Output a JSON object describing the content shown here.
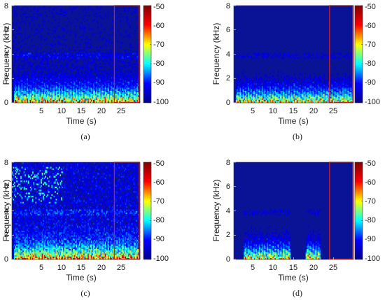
{
  "colors": {
    "background": "#0a1296",
    "highlight_box": "#cc2222",
    "colormap": [
      "#00008f",
      "#0000ff",
      "#00ffff",
      "#ffff00",
      "#ff0000",
      "#800000"
    ]
  },
  "chart_data": [
    {
      "type": "heatmap",
      "panel_label": "(a)",
      "xlabel": "Time (s)",
      "ylabel": "Frequency (kHz)",
      "xticks": [
        "5",
        "10",
        "15",
        "20",
        "25"
      ],
      "yticks": [
        "0",
        "2",
        "4",
        "6",
        "8"
      ],
      "colorbar_ticks": [
        "-50",
        "-60",
        "-70",
        "-80",
        "-90",
        "-100"
      ],
      "xlim": [
        0,
        30
      ],
      "ylim": [
        0,
        8
      ],
      "clim": [
        -100,
        -50
      ],
      "highlight_box": {
        "x": [
          24,
          30
        ],
        "y": [
          0,
          8
        ]
      },
      "speech_segments": [
        [
          0.3,
          29.7
        ]
      ],
      "noise_level": "low"
    },
    {
      "type": "heatmap",
      "panel_label": "(b)",
      "xlabel": "Time (s)",
      "ylabel": "Frequency (kHz)",
      "xticks": [
        "5",
        "10",
        "15",
        "20",
        "25"
      ],
      "yticks": [
        "0",
        "2",
        "4",
        "6",
        "8"
      ],
      "colorbar_ticks": [
        "-50",
        "-60",
        "-70",
        "-80",
        "-90",
        "-100"
      ],
      "xlim": [
        0,
        30
      ],
      "ylim": [
        0,
        8
      ],
      "clim": [
        -100,
        -50
      ],
      "highlight_box": {
        "x": [
          24,
          30
        ],
        "y": [
          0,
          8
        ]
      },
      "speech_segments": [
        [
          0.3,
          29.7
        ]
      ],
      "noise_level": "none"
    },
    {
      "type": "heatmap",
      "panel_label": "(c)",
      "xlabel": "Time (s)",
      "ylabel": "Frequency (kHz)",
      "xticks": [
        "5",
        "10",
        "15",
        "20",
        "25"
      ],
      "yticks": [
        "0",
        "2",
        "4",
        "6",
        "8"
      ],
      "colorbar_ticks": [
        "-50",
        "-60",
        "-70",
        "-80",
        "-90",
        "-100"
      ],
      "xlim": [
        0,
        30
      ],
      "ylim": [
        0,
        8
      ],
      "clim": [
        -100,
        -50
      ],
      "highlight_box": {
        "x": [
          24,
          30
        ],
        "y": [
          0,
          8
        ]
      },
      "speech_segments": [
        [
          0.3,
          29.7
        ]
      ],
      "noise_level": "high"
    },
    {
      "type": "heatmap",
      "panel_label": "(d)",
      "xlabel": "Time (s)",
      "ylabel": "Frequency (kHz)",
      "xticks": [
        "5",
        "10",
        "15",
        "20",
        "25"
      ],
      "yticks": [
        "0",
        "2",
        "4",
        "6",
        "8"
      ],
      "colorbar_ticks": [
        "-50",
        "-60",
        "-70",
        "-80",
        "-90",
        "-100"
      ],
      "xlim": [
        0,
        30
      ],
      "ylim": [
        0,
        8
      ],
      "clim": [
        -100,
        -50
      ],
      "highlight_box": {
        "x": [
          24,
          30
        ],
        "y": [
          0,
          8
        ]
      },
      "speech_segments": [
        [
          2.5,
          14
        ],
        [
          18,
          21.5
        ]
      ],
      "noise_level": "none"
    }
  ]
}
